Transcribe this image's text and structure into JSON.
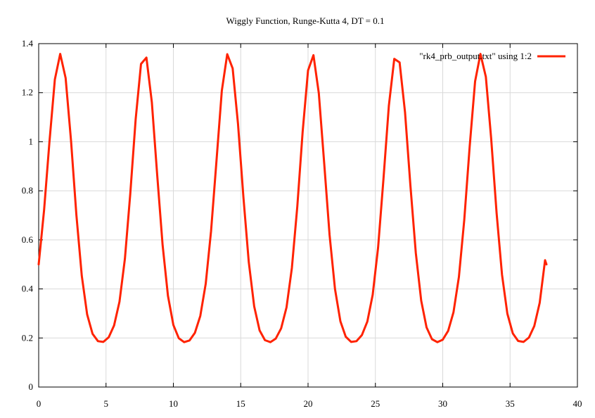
{
  "chart_data": {
    "type": "line",
    "title": "Wiggly Function, Runge-Kutta 4, DT = 0.1",
    "xlabel": "",
    "ylabel": "",
    "xlim": [
      0,
      40
    ],
    "ylim": [
      0,
      1.4
    ],
    "x_ticks": [
      0,
      5,
      10,
      15,
      20,
      25,
      30,
      35,
      40
    ],
    "x_tick_labels": [
      "0",
      "5",
      "10",
      "15",
      "20",
      "25",
      "30",
      "35",
      "40"
    ],
    "y_ticks": [
      0,
      0.2,
      0.4,
      0.6,
      0.8,
      1,
      1.2,
      1.4
    ],
    "y_tick_labels": [
      "0",
      "0.2",
      "0.4",
      "0.6",
      "0.8",
      "1",
      "1.2",
      "1.4"
    ],
    "grid": true,
    "legend_position": "top-right",
    "series": [
      {
        "name": "\"rk4_prb_output.txt\" using 1:2",
        "color": "#ff2200",
        "x": [
          0.0,
          0.4,
          0.8,
          1.2,
          1.6,
          2.0,
          2.4,
          2.8,
          3.2,
          3.6,
          4.0,
          4.4,
          4.8,
          5.2,
          5.6,
          6.0,
          6.4,
          6.8,
          7.2,
          7.6,
          8.0,
          8.4,
          8.8,
          9.2,
          9.6,
          10.0,
          10.4,
          10.8,
          11.2,
          11.6,
          12.0,
          12.4,
          12.8,
          13.2,
          13.6,
          14.0,
          14.4,
          14.8,
          15.2,
          15.6,
          16.0,
          16.4,
          16.8,
          17.2,
          17.6,
          18.0,
          18.4,
          18.8,
          19.2,
          19.6,
          20.0,
          20.4,
          20.8,
          21.2,
          21.6,
          22.0,
          22.4,
          22.8,
          23.2,
          23.6,
          24.0,
          24.4,
          24.8,
          25.2,
          25.6,
          26.0,
          26.4,
          26.8,
          27.2,
          27.6,
          28.0,
          28.4,
          28.8,
          29.2,
          29.6,
          30.0,
          30.4,
          30.8,
          31.2,
          31.6,
          32.0,
          32.4,
          32.8,
          33.2,
          33.6,
          34.0,
          34.4,
          34.8,
          35.2,
          35.6,
          36.0,
          36.4,
          36.8,
          37.2,
          37.6,
          37.7
        ],
        "y": [
          0.5,
          0.722,
          0.999,
          1.254,
          1.358,
          1.26,
          1.004,
          0.702,
          0.453,
          0.296,
          0.217,
          0.187,
          0.184,
          0.203,
          0.251,
          0.348,
          0.523,
          0.787,
          1.092,
          1.317,
          1.343,
          1.161,
          0.865,
          0.579,
          0.372,
          0.253,
          0.199,
          0.183,
          0.19,
          0.221,
          0.29,
          0.421,
          0.636,
          0.922,
          1.208,
          1.357,
          1.299,
          1.073,
          0.774,
          0.51,
          0.329,
          0.231,
          0.191,
          0.183,
          0.197,
          0.239,
          0.325,
          0.485,
          0.735,
          1.04,
          1.291,
          1.353,
          1.198,
          0.911,
          0.62,
          0.4,
          0.268,
          0.205,
          0.184,
          0.187,
          0.212,
          0.267,
          0.376,
          0.569,
          0.847,
          1.147,
          1.338,
          1.323,
          1.12,
          0.823,
          0.547,
          0.352,
          0.243,
          0.195,
          0.183,
          0.193,
          0.229,
          0.305,
          0.449,
          0.681,
          0.98,
          1.246,
          1.358,
          1.265,
          1.012,
          0.709,
          0.458,
          0.299,
          0.219,
          0.188,
          0.184,
          0.202,
          0.249,
          0.344,
          0.517,
          0.5
        ]
      }
    ]
  }
}
